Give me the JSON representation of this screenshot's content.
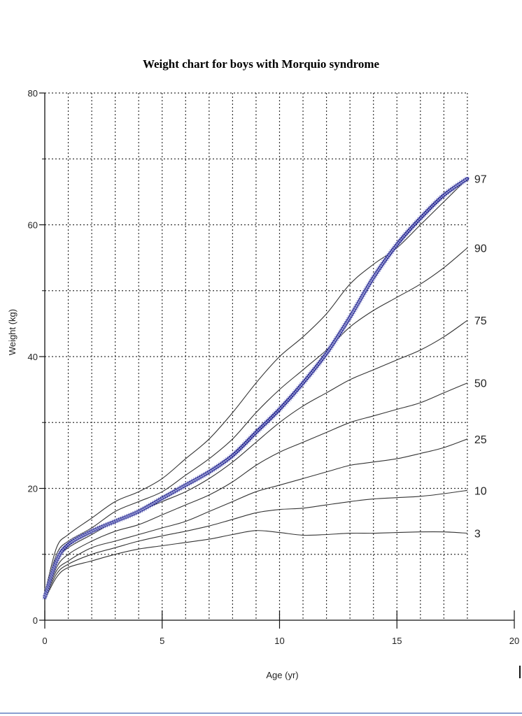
{
  "chart_data": {
    "type": "line",
    "title": "Weight chart for boys with Morquio syndrome",
    "xlabel": "Age (yr)",
    "ylabel": "Weight (kg)",
    "xlim": [
      0,
      20
    ],
    "ylim": [
      0,
      80
    ],
    "x_ticks": [
      0,
      5,
      10,
      15,
      20
    ],
    "y_ticks": [
      0,
      20,
      40,
      60,
      80
    ],
    "grid": true,
    "percentile_series": [
      {
        "name": "97",
        "x": [
          0,
          0.5,
          1,
          2,
          3,
          4,
          5,
          6,
          7,
          8,
          9,
          10,
          11,
          12,
          13,
          14,
          15,
          16,
          17,
          18
        ],
        "values": [
          4,
          11,
          13,
          15.5,
          18,
          19.5,
          21.5,
          24.5,
          27.5,
          31.5,
          36,
          40,
          43,
          46.5,
          51,
          54,
          56.5,
          60,
          63.5,
          67
        ]
      },
      {
        "name": "90",
        "x": [
          0,
          0.5,
          1,
          2,
          3,
          4,
          5,
          6,
          7,
          8,
          9,
          10,
          11,
          12,
          13,
          14,
          15,
          16,
          17,
          18
        ],
        "values": [
          3.8,
          10,
          12,
          14,
          16.5,
          18,
          19.5,
          22,
          24.5,
          27.5,
          31.5,
          35,
          38,
          41,
          44.5,
          47,
          49,
          51,
          53.5,
          56.5
        ]
      },
      {
        "name": "75",
        "x": [
          0,
          0.5,
          1,
          2,
          3,
          4,
          5,
          6,
          7,
          8,
          9,
          10,
          11,
          12,
          13,
          14,
          15,
          16,
          17,
          18
        ],
        "values": [
          3.6,
          9,
          11,
          13,
          15,
          16.5,
          18,
          19.5,
          21.5,
          24,
          27,
          30,
          32.5,
          34.5,
          36.5,
          38,
          39.5,
          41,
          43,
          45.5
        ]
      },
      {
        "name": "50",
        "x": [
          0,
          0.5,
          1,
          2,
          3,
          4,
          5,
          6,
          7,
          8,
          9,
          10,
          11,
          12,
          13,
          14,
          15,
          16,
          17,
          18
        ],
        "values": [
          3.4,
          8,
          10,
          12,
          13.5,
          14.5,
          16,
          17.5,
          19,
          21,
          23.5,
          25.5,
          27,
          28.5,
          30,
          31,
          32,
          33,
          34.5,
          36
        ]
      },
      {
        "name": "25",
        "x": [
          0,
          0.5,
          1,
          2,
          3,
          4,
          5,
          6,
          7,
          8,
          9,
          10,
          11,
          12,
          13,
          14,
          15,
          16,
          17,
          18
        ],
        "values": [
          3.3,
          7.5,
          9,
          11,
          12,
          13,
          14,
          15,
          16.5,
          18,
          19.5,
          20.5,
          21.5,
          22.5,
          23.5,
          24,
          24.5,
          25.3,
          26.2,
          27.5
        ]
      },
      {
        "name": "10",
        "x": [
          0,
          0.5,
          1,
          2,
          3,
          4,
          5,
          6,
          7,
          8,
          9,
          10,
          11,
          12,
          13,
          14,
          15,
          16,
          17,
          18
        ],
        "values": [
          3.2,
          7,
          8.5,
          10,
          11,
          12,
          12.8,
          13.5,
          14.3,
          15.3,
          16.3,
          16.8,
          17,
          17.5,
          18,
          18.4,
          18.6,
          18.8,
          19.2,
          19.7
        ]
      },
      {
        "name": "3",
        "x": [
          0,
          0.5,
          1,
          2,
          3,
          4,
          5,
          6,
          7,
          8,
          9,
          10,
          11,
          12,
          13,
          14,
          15,
          16,
          17,
          18
        ],
        "values": [
          3.1,
          6.5,
          8,
          9,
          10,
          10.8,
          11.3,
          11.8,
          12.3,
          13,
          13.6,
          13.3,
          12.9,
          13,
          13.2,
          13.2,
          13.3,
          13.4,
          13.4,
          13.2
        ]
      }
    ],
    "patient_series": {
      "x": [
        0,
        0.5,
        1,
        2,
        3,
        4,
        5,
        6,
        7,
        8,
        9,
        10,
        11,
        12,
        13,
        14,
        15,
        16,
        17,
        18
      ],
      "values": [
        3.5,
        9,
        11.5,
        13.5,
        15,
        16.5,
        18.5,
        20.5,
        22.5,
        25,
        28.5,
        32,
        36,
        40.5,
        46,
        52,
        57,
        61,
        64.5,
        67
      ]
    }
  },
  "colors": {
    "patient_line": "#1f1f8a",
    "percentile_line": "#333333",
    "grid": "#333333",
    "bottom_rule": "#8a9fd0"
  }
}
